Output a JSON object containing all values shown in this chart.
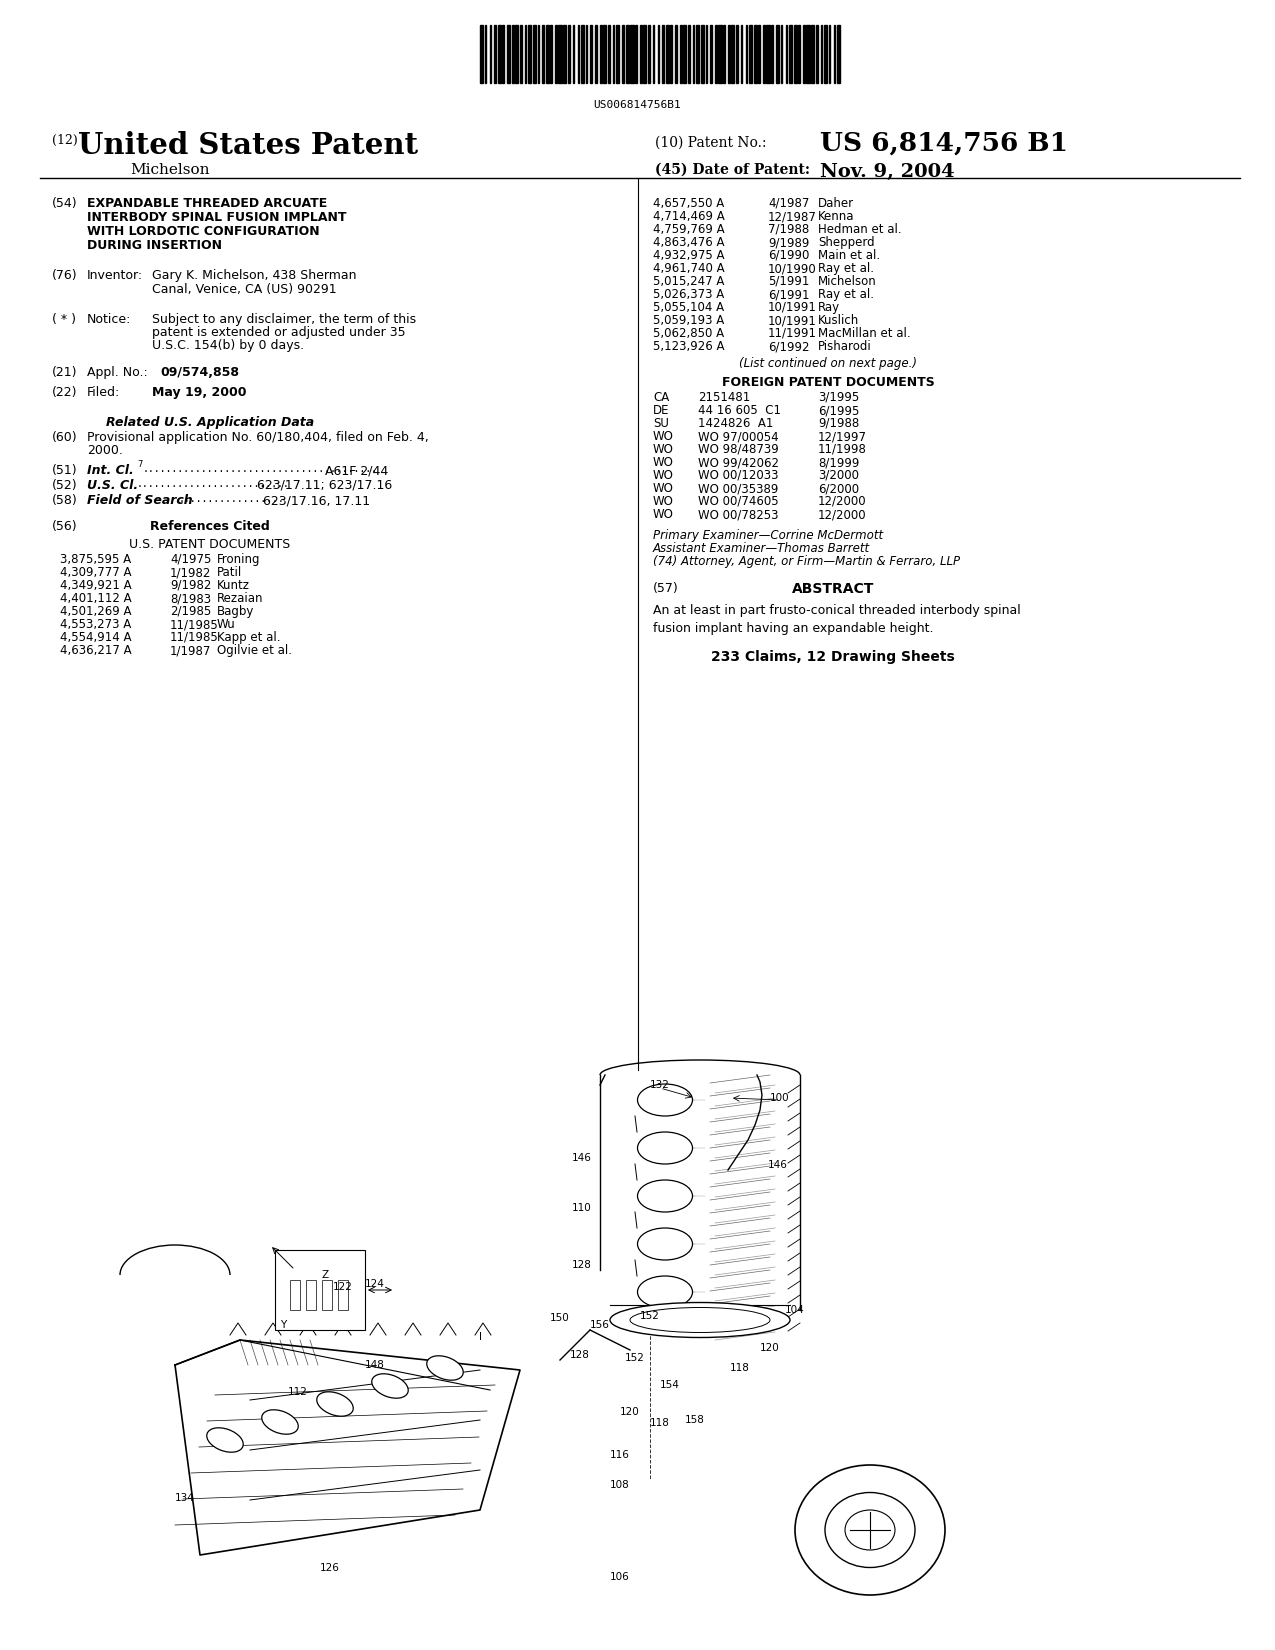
{
  "bg_color": "#ffffff",
  "barcode_text": "US006814756B1",
  "patent_number": "US 6,814,756 B1",
  "date": "Nov. 9, 2004",
  "series_title": "United States Patent",
  "inventor_name_sub": "Michelson",
  "title_lines": [
    "EXPANDABLE THREADED ARCUATE",
    "INTERBODY SPINAL FUSION IMPLANT",
    "WITH LORDOTIC CONFIGURATION",
    "DURING INSERTION"
  ],
  "inventor_line1": "Gary K. Michelson, 438 Sherman",
  "inventor_line2": "Canal, Venice, CA (US) 90291",
  "notice_lines": [
    "Subject to any disclaimer, the term of this",
    "patent is extended or adjusted under 35",
    "U.S.C. 154(b) by 0 days."
  ],
  "appl_no": "09/574,858",
  "filed_date": "May 19, 2000",
  "provisional": "Provisional application No. 60/180,404, filed on Feb. 4,",
  "provisional2": "2000.",
  "intcl_value": "A61F 2/44",
  "uscl_value": "623/17.11; 623/17.16",
  "fos_value": "623/17.16, 17.11",
  "us_patents_left": [
    [
      "3,875,595 A",
      "4/1975",
      "Froning"
    ],
    [
      "4,309,777 A",
      "1/1982",
      "Patil"
    ],
    [
      "4,349,921 A",
      "9/1982",
      "Kuntz"
    ],
    [
      "4,401,112 A",
      "8/1983",
      "Rezaian"
    ],
    [
      "4,501,269 A",
      "2/1985",
      "Bagby"
    ],
    [
      "4,553,273 A",
      "11/1985",
      "Wu"
    ],
    [
      "4,554,914 A",
      "11/1985",
      "Kapp et al."
    ],
    [
      "4,636,217 A",
      "1/1987",
      "Ogilvie et al."
    ]
  ],
  "us_patents_right": [
    [
      "4,657,550 A",
      "4/1987",
      "Daher"
    ],
    [
      "4,714,469 A",
      "12/1987",
      "Kenna"
    ],
    [
      "4,759,769 A",
      "7/1988",
      "Hedman et al."
    ],
    [
      "4,863,476 A",
      "9/1989",
      "Shepperd"
    ],
    [
      "4,932,975 A",
      "6/1990",
      "Main et al."
    ],
    [
      "4,961,740 A",
      "10/1990",
      "Ray et al."
    ],
    [
      "5,015,247 A",
      "5/1991",
      "Michelson"
    ],
    [
      "5,026,373 A",
      "6/1991",
      "Ray et al."
    ],
    [
      "5,055,104 A",
      "10/1991",
      "Ray"
    ],
    [
      "5,059,193 A",
      "10/1991",
      "Kuslich"
    ],
    [
      "5,062,850 A",
      "11/1991",
      "MacMillan et al."
    ],
    [
      "5,123,926 A",
      "6/1992",
      "Pisharodi"
    ]
  ],
  "continued_text": "(List continued on next page.)",
  "foreign_patents": [
    [
      "CA",
      "2151481",
      "3/1995"
    ],
    [
      "DE",
      "44 16 605  C1",
      "6/1995"
    ],
    [
      "SU",
      "1424826  A1",
      "9/1988"
    ],
    [
      "WO",
      "WO 97/00054",
      "12/1997"
    ],
    [
      "WO",
      "WO 98/48739",
      "11/1998"
    ],
    [
      "WO",
      "WO 99/42062",
      "8/1999"
    ],
    [
      "WO",
      "WO 00/12033",
      "3/2000"
    ],
    [
      "WO",
      "WO 00/35389",
      "6/2000"
    ],
    [
      "WO",
      "WO 00/74605",
      "12/2000"
    ],
    [
      "WO",
      "WO 00/78253",
      "12/2000"
    ]
  ],
  "primary_examiner": "Primary Examiner—Corrine McDermott",
  "assistant_examiner": "Assistant Examiner—Thomas Barrett",
  "attorney": "(74) Attorney, Agent, or Firm—Martin & Ferraro, LLP",
  "abstract_text": "An at least in part frusto-conical threaded interbody spinal\nfusion implant having an expandable height.",
  "claims_text": "233 Claims, 12 Drawing Sheets"
}
